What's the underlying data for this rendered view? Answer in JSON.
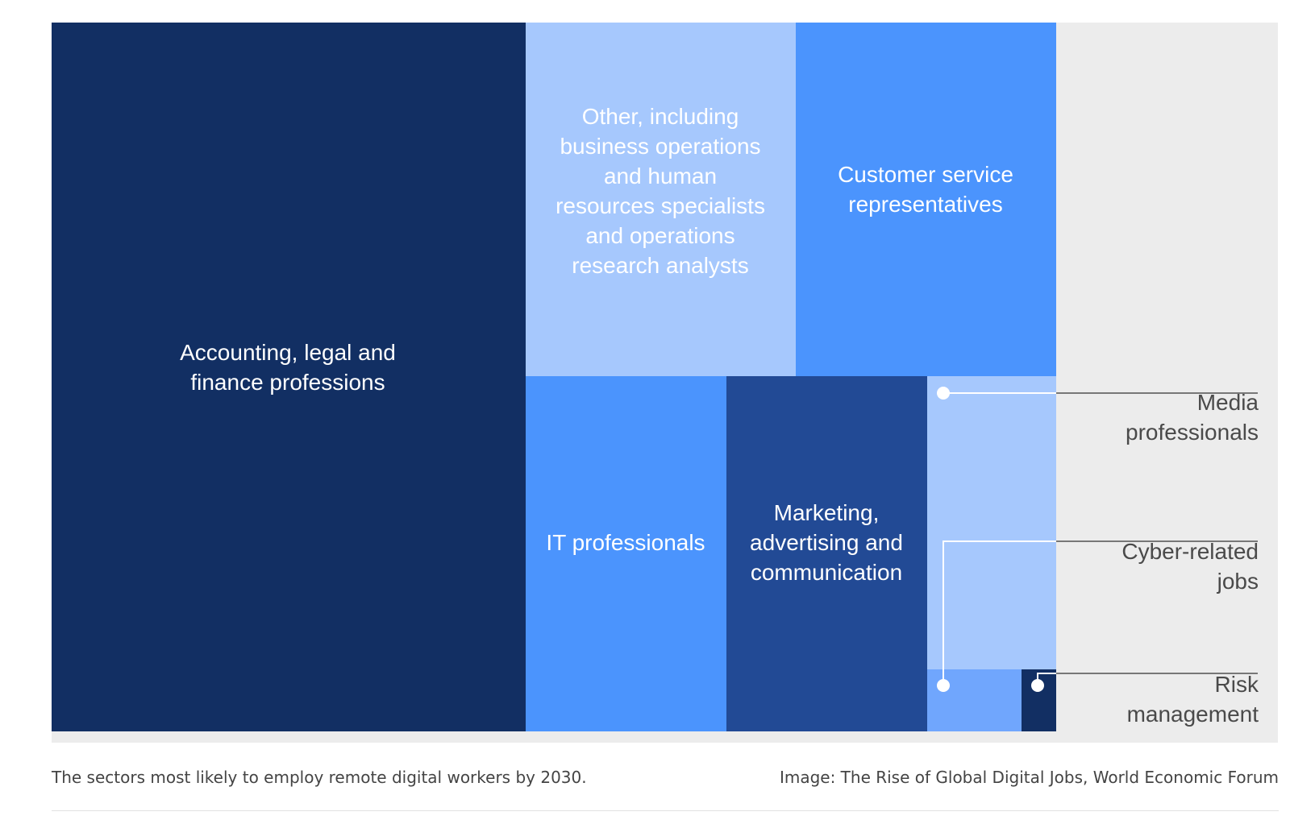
{
  "chart_data": {
    "type": "treemap",
    "title": "",
    "items": [
      {
        "name": "Accounting, legal and finance professions",
        "lines": [
          "Accounting, legal and",
          "finance professions"
        ],
        "value": 44.6,
        "color": "#122f63",
        "text_color": "#ffffff"
      },
      {
        "name": "Other, including business operations and human resources specialists and operations research analysts",
        "lines": [
          "Other, including",
          "business operations",
          "and human",
          "resources specialists",
          "and operations",
          "research analysts"
        ],
        "value": 12.6,
        "color": "#a6c8fd",
        "text_color": "#ffffff"
      },
      {
        "name": "Customer service representatives",
        "lines": [
          "Customer service",
          "representatives"
        ],
        "value": 12.2,
        "color": "#4b94fd",
        "text_color": "#ffffff"
      },
      {
        "name": "IT professionals",
        "lines": [
          "IT professionals"
        ],
        "value": 9.4,
        "color": "#4b94fd",
        "text_color": "#ffffff"
      },
      {
        "name": "Marketing, advertising and communication",
        "lines": [
          "Marketing,",
          "advertising and",
          "communication"
        ],
        "value": 9.4,
        "color": "#224a95",
        "text_color": "#ffffff"
      },
      {
        "name": "Media professionals",
        "lines": [
          "Media",
          "professionals"
        ],
        "value": 5.2,
        "color": "#a6c8fd",
        "text_color": "#4a4a4a"
      },
      {
        "name": "Cyber-related jobs",
        "lines": [
          "Cyber-related",
          "jobs"
        ],
        "value": 1.0,
        "color": "#70a6fd",
        "text_color": "#4a4a4a"
      },
      {
        "name": "Risk management",
        "lines": [
          "Risk",
          "management"
        ],
        "value": 0.4,
        "color": "#122f63",
        "text_color": "#4a4a4a"
      }
    ],
    "background": "#ececec"
  },
  "caption": {
    "left": "The sectors most likely to employ remote digital workers by 2030.",
    "right": "Image: The Rise of Global Digital Jobs, World Economic Forum"
  }
}
